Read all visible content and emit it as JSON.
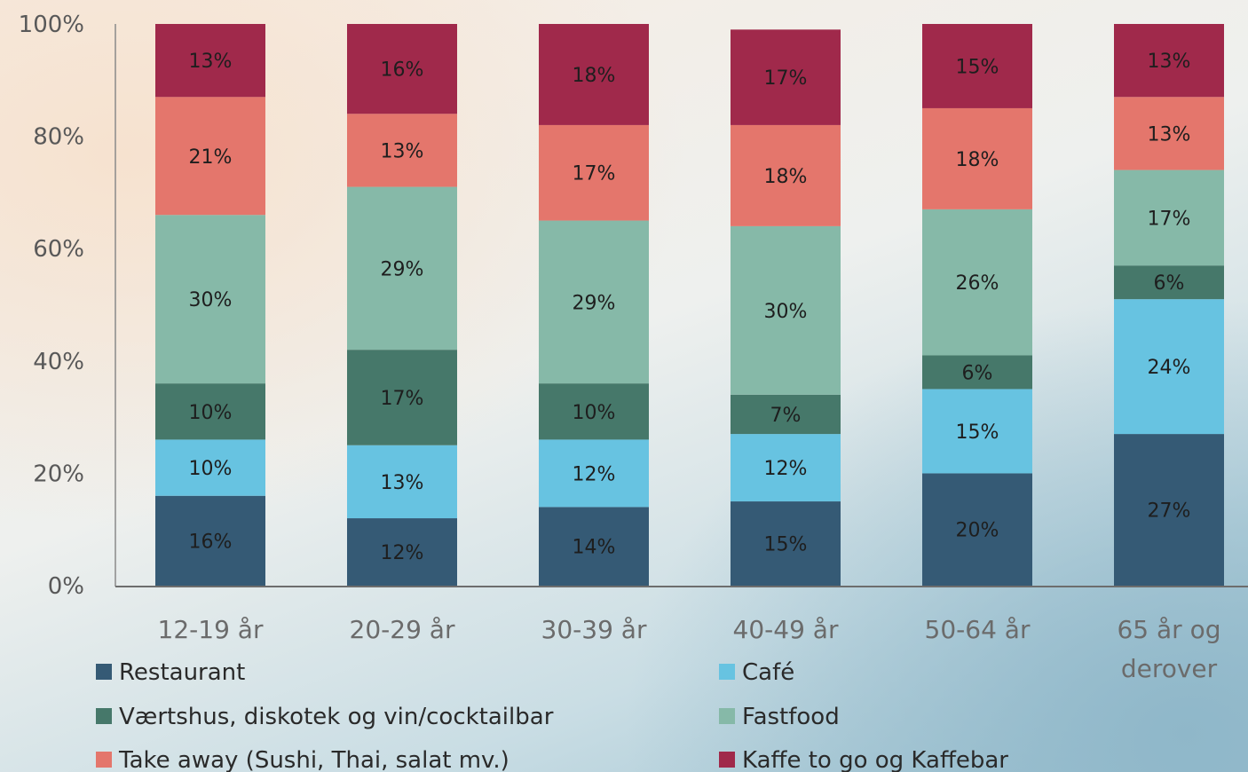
{
  "chart_data": {
    "type": "bar",
    "stacked": true,
    "categories": [
      "12-19 år",
      "20-29 år",
      "30-39 år",
      "40-49 år",
      "50-64 år",
      "65 år og derover"
    ],
    "ylim": [
      0,
      100
    ],
    "yticks": [
      "0%",
      "20%",
      "40%",
      "60%",
      "80%",
      "100%"
    ],
    "grid": false,
    "legend_position": "bottom",
    "series": [
      {
        "name": "Restaurant",
        "color": "#355a75",
        "values": [
          16,
          12,
          14,
          15,
          20,
          27
        ],
        "labels": [
          "16%",
          "12%",
          "14%",
          "15%",
          "20%",
          "27%"
        ]
      },
      {
        "name": "Café",
        "color": "#67c3e1",
        "values": [
          10,
          13,
          12,
          12,
          15,
          24
        ],
        "labels": [
          "10%",
          "13%",
          "12%",
          "12%",
          "15%",
          "24%"
        ]
      },
      {
        "name": "Værtshus, diskotek og vin/cocktailbar",
        "color": "#46786a",
        "values": [
          10,
          17,
          10,
          7,
          6,
          6
        ],
        "labels": [
          "10%",
          "17%",
          "10%",
          "7%",
          "6%",
          "6%"
        ]
      },
      {
        "name": "Fastfood",
        "color": "#86b9a8",
        "values": [
          30,
          29,
          29,
          30,
          26,
          17
        ],
        "labels": [
          "30%",
          "29%",
          "29%",
          "30%",
          "26%",
          "17%"
        ]
      },
      {
        "name": "Take away (Sushi, Thai, salat mv.)",
        "color": "#e4766c",
        "values": [
          21,
          13,
          17,
          18,
          18,
          13
        ],
        "labels": [
          "21%",
          "13%",
          "17%",
          "18%",
          "18%",
          "13%"
        ]
      },
      {
        "name": "Kaffe to go og Kaffebar",
        "color": "#a0294b",
        "values": [
          13,
          16,
          18,
          17,
          15,
          13
        ],
        "labels": [
          "13%",
          "16%",
          "18%",
          "17%",
          "15%",
          "13%"
        ]
      }
    ]
  }
}
